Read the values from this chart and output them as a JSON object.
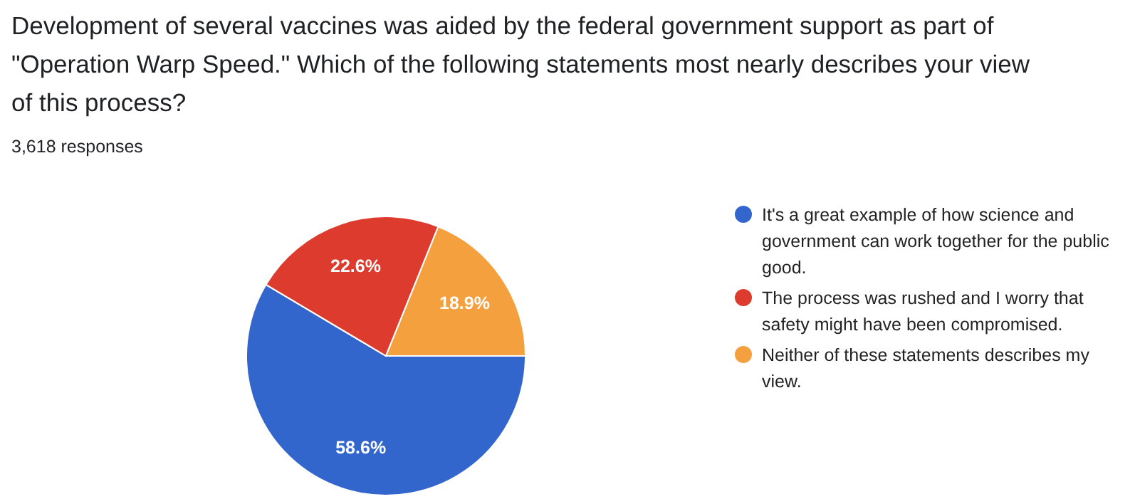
{
  "chart_data": {
    "type": "pie",
    "title": "Development of several vaccines was aided by the federal government support as part of \"Operation Warp Speed.\" Which of the following statements most nearly describes your view of this process?",
    "subtitle": "3,618 responses",
    "categories": [
      "It's a great example of how science and government can work together for the public good.",
      "The process was rushed and I worry that safety might have been compromised.",
      "Neither of these statements describes my view."
    ],
    "values": [
      58.6,
      22.6,
      18.9
    ],
    "colors": [
      "#3366cc",
      "#dc3b2e",
      "#f5a03e"
    ],
    "value_labels": [
      "58.6%",
      "22.6%",
      "18.9%"
    ],
    "legend": "right"
  }
}
